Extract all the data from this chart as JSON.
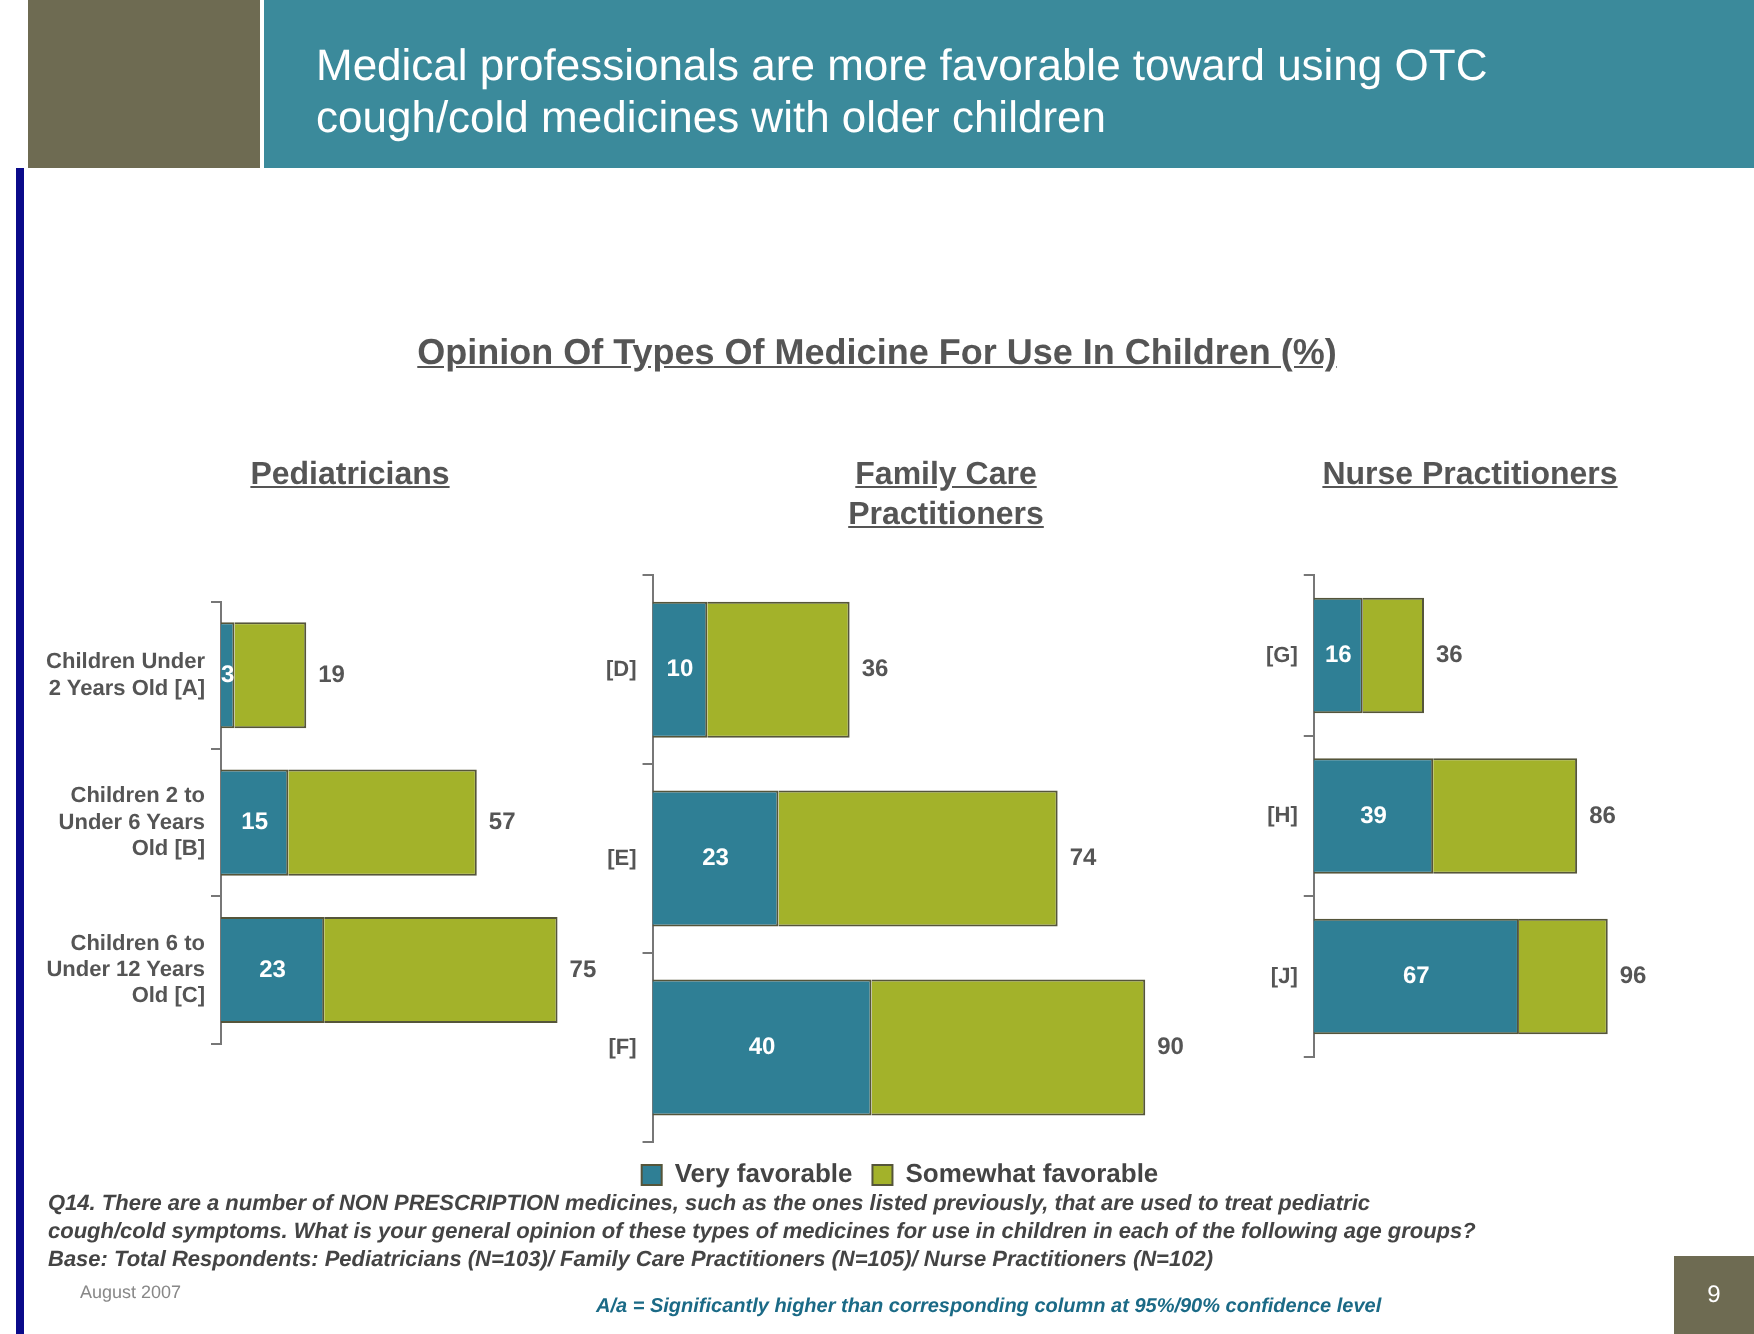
{
  "chart_data": [
    {
      "type": "bar",
      "orientation": "horizontal",
      "stacked": true,
      "title": "Pediatricians",
      "categories": [
        "Children Under 2 Years Old [A]",
        "Children 2 to Under 6 Years Old [B]",
        "Children 6 to Under 12 Years Old [C]"
      ],
      "series": [
        {
          "color": "#2f7f95",
          "values": [
            3,
            15,
            23
          ],
          "value_labels": [
            "3",
            "15",
            "23"
          ]
        },
        {
          "color": "#a3b22a",
          "values": [
            16,
            42,
            52
          ]
        }
      ],
      "totals": [
        "19",
        "57",
        "75"
      ],
      "tick_labels": "y",
      "legend": false,
      "annotations": [
        "Medical professionals are more favorable toward using OTC cough/cold medicines with older children",
        "Opinion Of Types Of Medicine For Use In Children (%)",
        "Q14. There are a number of NON PRESCRIPTION medicines, such as the ones listed previously, that are used to treat pediatric",
        "cough/cold symptoms.  What is your general opinion of these types of medicines for use in children in each of the following age groups?",
        "Base: Total Respondents: Pediatricians (N=103)/ Family Care Practitioners (N=105)/ Nurse Practitioners (N=102)",
        "A/a = Significantly higher than corresponding column at 95%/90% confidence level",
        "August 2007",
        "9"
      ]
    },
    {
      "type": "bar",
      "orientation": "horizontal",
      "stacked": true,
      "title": "Family Care Practitioners",
      "categories": [
        "[D]",
        "[E]",
        "[F]"
      ],
      "series": [
        {
          "name": "Very favorable",
          "color": "#2f7f95",
          "values": [
            10,
            23,
            40
          ],
          "value_labels": [
            "10",
            "23",
            "40"
          ]
        },
        {
          "name": "Somewhat favorable",
          "color": "#a3b22a",
          "values": [
            26,
            51,
            50
          ]
        }
      ],
      "totals": [
        "36",
        "74",
        "90"
      ],
      "tick_labels": "y",
      "legend": "bottom"
    },
    {
      "type": "bar",
      "orientation": "horizontal",
      "stacked": true,
      "title": "Nurse Practitioners",
      "categories": [
        "[G]",
        "[H]",
        "[J]"
      ],
      "series": [
        {
          "color": "#2f7f95",
          "values": [
            16,
            39,
            67
          ],
          "value_labels": [
            "16",
            "39",
            "67"
          ]
        },
        {
          "color": "#a3b22a",
          "values": [
            20,
            47,
            29
          ]
        }
      ],
      "totals": [
        "36",
        "86",
        "96"
      ],
      "tick_labels": "y",
      "legend": false
    }
  ]
}
